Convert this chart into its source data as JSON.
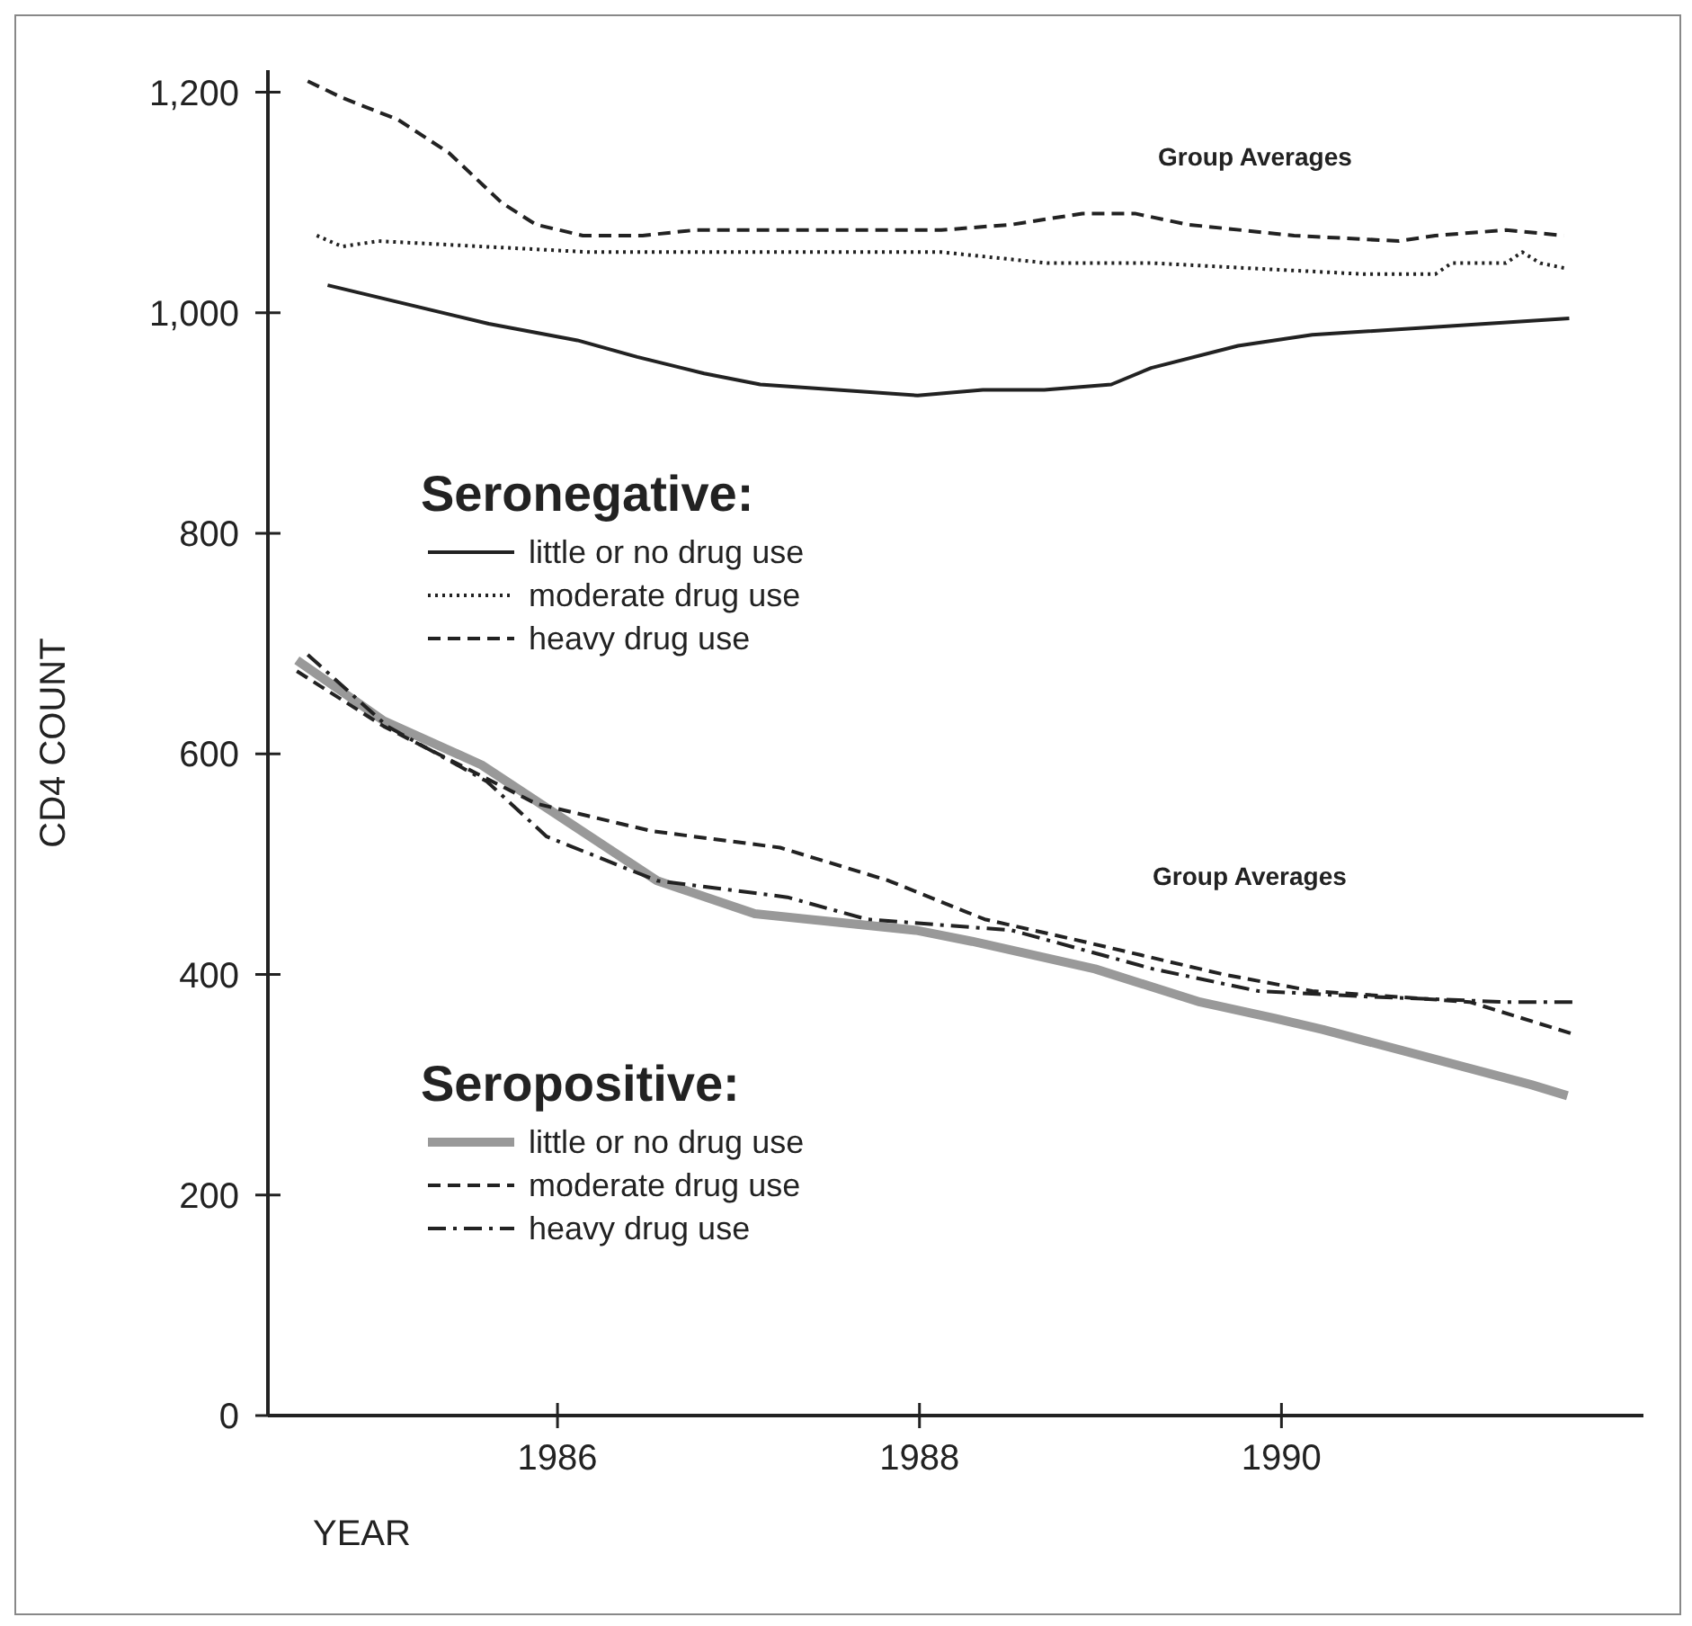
{
  "chart_data": {
    "type": "line",
    "xlabel": "YEAR",
    "ylabel": "CD4 COUNT",
    "xlim": [
      1984.4,
      1992
    ],
    "xticks": [
      1986,
      1988,
      1990
    ],
    "ylim": [
      0,
      1220
    ],
    "yticks": [
      {
        "value": 1200,
        "label": "1,200"
      },
      {
        "value": 1000,
        "label": "1,000"
      },
      800,
      600,
      400,
      200,
      0
    ],
    "grid": false,
    "legend": "left",
    "marker": "none",
    "annotations": [
      "Group Averages",
      "Seronegative:",
      "Group Averages",
      "Seropositive:"
    ],
    "series": [
      {
        "name": "little or no drug use",
        "color": "#222222",
        "line_style": "solid",
        "x": [
          1984.73,
          1985.62,
          1986.11,
          1986.44,
          1986.81,
          1987.12,
          1987.99,
          1988.35,
          1988.69,
          1989.06,
          1989.28,
          1989.76,
          1990.17,
          1991.59
        ],
        "values": [
          1025,
          990,
          975,
          960,
          945,
          935,
          925,
          930,
          930,
          935,
          950,
          970,
          980,
          995
        ]
      },
      {
        "name": "moderate drug use",
        "color": "#222222",
        "line_style": "dotted",
        "x": [
          1984.67,
          1984.81,
          1985.01,
          1985.59,
          1986.18,
          1986.95,
          1987.54,
          1988.12,
          1988.71,
          1989.29,
          1989.87,
          1990.46,
          1990.85,
          1990.94,
          1991.24,
          1991.33,
          1991.43,
          1991.58
        ],
        "values": [
          1070,
          1060,
          1065,
          1060,
          1055,
          1055,
          1055,
          1055,
          1045,
          1045,
          1040,
          1035,
          1035,
          1045,
          1045,
          1055,
          1045,
          1040
        ]
      },
      {
        "name": "heavy drug use",
        "color": "#222222",
        "line_style": "dashed",
        "x": [
          1984.62,
          1984.81,
          1985.12,
          1985.4,
          1985.69,
          1985.88,
          1986.14,
          1986.47,
          1986.76,
          1987.15,
          1987.64,
          1988.12,
          1988.51,
          1988.9,
          1989.19,
          1989.48,
          1990.07,
          1990.65,
          1990.85,
          1991.24,
          1991.56
        ],
        "values": [
          1210,
          1195,
          1175,
          1145,
          1100,
          1080,
          1070,
          1070,
          1075,
          1075,
          1075,
          1075,
          1080,
          1090,
          1090,
          1080,
          1070,
          1065,
          1070,
          1075,
          1070
        ]
      },
      {
        "name": "little or no drug use",
        "color": "#999999",
        "line_style": "solid",
        "x": [
          1984.56,
          1985.04,
          1985.58,
          1986.55,
          1987.09,
          1987.98,
          1988.29,
          1988.97,
          1989.55,
          1989.97,
          1990.23,
          1991.38,
          1991.58
        ],
        "values": [
          685,
          630,
          590,
          485,
          455,
          440,
          430,
          405,
          375,
          360,
          350,
          300,
          290
        ]
      },
      {
        "name": "moderate drug use",
        "color": "#222222",
        "line_style": "dashed",
        "x": [
          1984.56,
          1985.04,
          1985.88,
          1986.52,
          1987.23,
          1987.83,
          1988.36,
          1988.9,
          1989.68,
          1990.17,
          1991.04,
          1991.63
        ],
        "values": [
          675,
          625,
          555,
          530,
          515,
          485,
          450,
          430,
          400,
          385,
          375,
          345
        ]
      },
      {
        "name": "heavy drug use",
        "color": "#222222",
        "line_style": "dashdot",
        "x": [
          1984.62,
          1985.06,
          1985.61,
          1985.94,
          1986.55,
          1987.27,
          1987.71,
          1988.51,
          1989.29,
          1989.87,
          1990.46,
          1991.24,
          1991.63
        ],
        "values": [
          690,
          625,
          575,
          525,
          485,
          470,
          450,
          440,
          405,
          385,
          380,
          375,
          375
        ]
      }
    ]
  }
}
